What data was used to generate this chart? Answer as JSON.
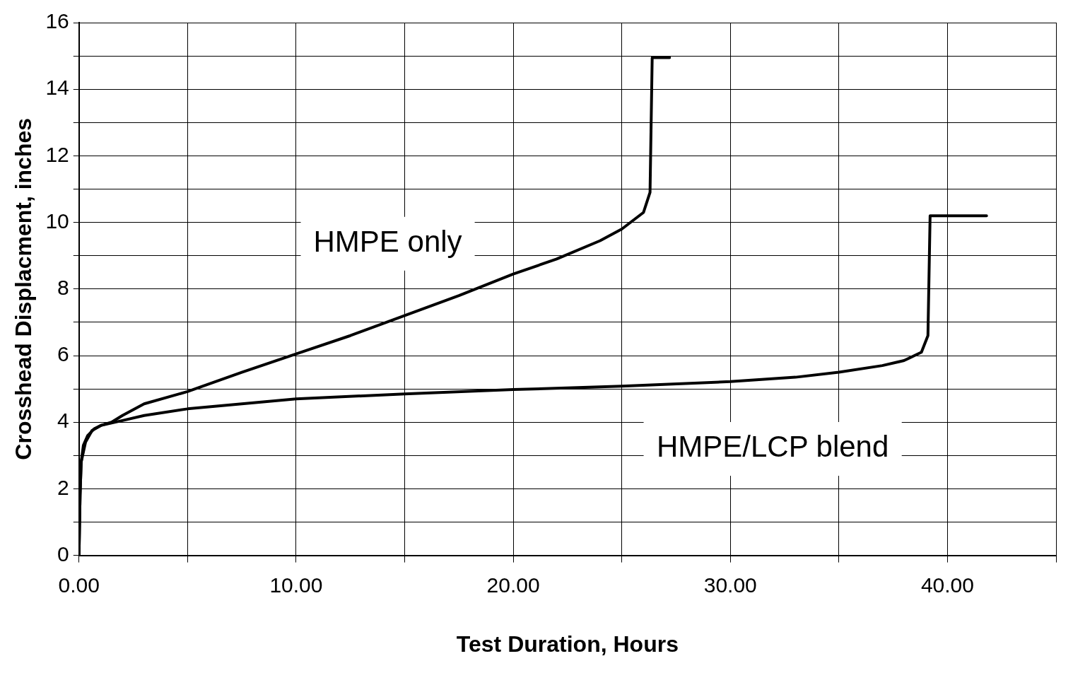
{
  "chart_data": {
    "type": "line",
    "xlabel": "Test Duration, Hours",
    "ylabel": "Crosshead Displacment, inches",
    "xlim": [
      0,
      45
    ],
    "ylim": [
      0,
      16
    ],
    "xticks": [
      {
        "value": 0,
        "label": "0.00"
      },
      {
        "value": 5,
        "label": null
      },
      {
        "value": 10,
        "label": "10.00"
      },
      {
        "value": 15,
        "label": null
      },
      {
        "value": 20,
        "label": "20.00"
      },
      {
        "value": 25,
        "label": null
      },
      {
        "value": 30,
        "label": "30.00"
      },
      {
        "value": 35,
        "label": null
      },
      {
        "value": 40,
        "label": "40.00"
      },
      {
        "value": 45,
        "label": null
      }
    ],
    "yticks": [
      0,
      {
        "value": 1,
        "label": null
      },
      2,
      {
        "value": 3,
        "label": null
      },
      4,
      {
        "value": 5,
        "label": null
      },
      6,
      {
        "value": 7,
        "label": null
      },
      8,
      {
        "value": 9,
        "label": null
      },
      10,
      {
        "value": 11,
        "label": null
      },
      12,
      {
        "value": 13,
        "label": null
      },
      14,
      {
        "value": 15,
        "label": null
      },
      16
    ],
    "grid": true,
    "legend": false,
    "marker": "none",
    "line_style": "solid",
    "series": [
      {
        "name": "HMPE only",
        "color": "#000000",
        "x": [
          0,
          0.05,
          0.1,
          0.2,
          0.4,
          0.7,
          1,
          1.5,
          2,
          3,
          5,
          7.5,
          10,
          12.5,
          15,
          17.5,
          20,
          22,
          24,
          25,
          26,
          26.3,
          26.4,
          27.2
        ],
        "values": [
          0,
          1.8,
          2.8,
          3.3,
          3.6,
          3.8,
          3.9,
          4.0,
          4.2,
          4.55,
          4.92,
          5.5,
          6.05,
          6.6,
          7.2,
          7.8,
          8.45,
          8.9,
          9.45,
          9.8,
          10.3,
          10.9,
          14.95,
          14.95
        ]
      },
      {
        "name": "HMPE/LCP blend",
        "color": "#000000",
        "x": [
          0,
          0.05,
          0.1,
          0.3,
          0.6,
          1,
          2,
          3,
          5,
          10,
          15,
          20,
          25,
          30,
          33,
          35,
          37,
          38,
          38.8,
          39.1,
          39.2,
          41.8
        ],
        "values": [
          0,
          1.8,
          2.8,
          3.4,
          3.75,
          3.9,
          4.05,
          4.2,
          4.4,
          4.7,
          4.85,
          4.98,
          5.08,
          5.22,
          5.35,
          5.5,
          5.7,
          5.85,
          6.1,
          6.6,
          10.2,
          10.2
        ]
      }
    ]
  }
}
